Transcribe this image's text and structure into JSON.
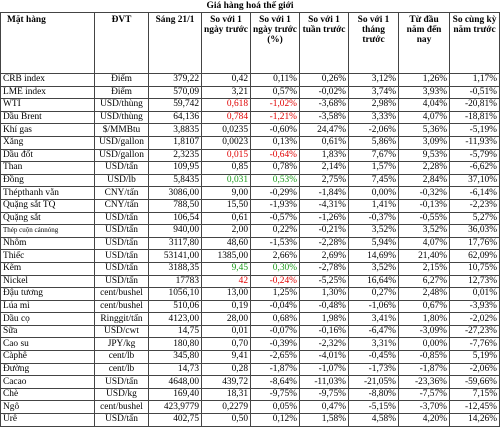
{
  "title": "Giá hàng hoá thế giới",
  "headers": [
    "Mặt hàng",
    "ĐVT",
    "Sáng 21/1",
    "So với 1 ngày trước",
    "So với 1 ngày trước (%)",
    "So với 1 tuần trước",
    "So với 1 tháng trước",
    "Từ đầu năm đến nay",
    "So cùng kỳ năm trước"
  ],
  "rows": [
    {
      "cells": [
        "CRB index",
        "Điểm",
        "379,22",
        "0,42",
        "0,11%",
        "0,26%",
        "3,12%",
        "1,26%",
        "1,17%"
      ]
    },
    {
      "cells": [
        "LME index",
        "Điểm",
        "570,09",
        "3,21",
        "0,57%",
        "-0,02%",
        "3,74%",
        "3,93%",
        "-0,51%"
      ]
    },
    {
      "cells": [
        "WTI",
        "USD/thùng",
        "59,742",
        "0,618",
        "-1,02%",
        "-3,68%",
        "2,98%",
        "4,04%",
        "-20,81%"
      ],
      "change_color": "#e00000"
    },
    {
      "cells": [
        "Dầu Brent",
        "USD/thùng",
        "64,136",
        "0,784",
        "-1,21%",
        "-3,58%",
        "3,33%",
        "4,07%",
        "-18,81%"
      ],
      "change_color": "#e00000"
    },
    {
      "cells": [
        "Khí gas",
        "$/MMBtu",
        "3,8835",
        "0,0235",
        "-0,60%",
        "24,47%",
        "-2,06%",
        "5,36%",
        "-5,19%"
      ]
    },
    {
      "cells": [
        "Xăng",
        "USD/gallon",
        "1,8107",
        "0,0023",
        "0,13%",
        "0,61%",
        "5,86%",
        "3,09%",
        "-11,93%"
      ]
    },
    {
      "cells": [
        "Dầu đốt",
        "USD/gallon",
        "2,3235",
        "0,015",
        "-0,64%",
        "1,83%",
        "7,67%",
        "9,53%",
        "-5,79%"
      ],
      "change_color": "#e00000"
    },
    {
      "cells": [
        "Than",
        "USD/tấn",
        "109,95",
        "0,85",
        "0,78%",
        "2,14%",
        "1,57%",
        "2,28%",
        "-6,62%"
      ]
    },
    {
      "cells": [
        "Đồng",
        "USD/lb",
        "5,8435",
        "0,031",
        "0,53%",
        "2,75%",
        "7,45%",
        "2,84%",
        "37,10%"
      ],
      "change_color": "#1a9a1a"
    },
    {
      "cells": [
        "Thépthanh vằn",
        "CNY/tấn",
        "3086,00",
        "9,00",
        "-0,29%",
        "-1,84%",
        "0,00%",
        "-0,32%",
        "-6,14%"
      ]
    },
    {
      "cells": [
        "Quặng sắt TQ",
        "CNY/tấn",
        "788,50",
        "15,50",
        "-1,93%",
        "-4,31%",
        "1,41%",
        "-0,13%",
        "-2,23%"
      ]
    },
    {
      "cells": [
        "Quặng sắt",
        "USD/tấn",
        "106,54",
        "0,61",
        "-0,57%",
        "-1,26%",
        "-0,37%",
        "-0,55%",
        "5,27%"
      ]
    },
    {
      "cells": [
        "Thép cuộn cánnóng",
        "USD/tấn",
        "940,00",
        "2,00",
        "0,22%",
        "-0,21%",
        "3,52%",
        "3,52%",
        "36,03%"
      ],
      "small_name": true
    },
    {
      "cells": [
        "Nhôm",
        "USD/tấn",
        "3117,80",
        "48,60",
        "-1,53%",
        "-2,28%",
        "5,94%",
        "4,07%",
        "17,76%"
      ]
    },
    {
      "cells": [
        "Thiếc",
        "USD/tấn",
        "53141,00",
        "1385,00",
        "2,66%",
        "2,69%",
        "14,69%",
        "21,40%",
        "62,09%"
      ]
    },
    {
      "cells": [
        "Kẽm",
        "USD/tấn",
        "3188,35",
        "9,45",
        "0,30%",
        "-2,78%",
        "3,52%",
        "2,15%",
        "10,75%"
      ],
      "change_color": "#1a9a1a"
    },
    {
      "cells": [
        "Nickel",
        "USD/tấn",
        "17783",
        "42",
        "-0,24%",
        "-5,25%",
        "16,64%",
        "6,27%",
        "12,73%"
      ],
      "change_color": "#e00000"
    },
    {
      "cells": [
        "Đậu tương",
        "cent/bushel",
        "1056,10",
        "13,00",
        "1,25%",
        "1,30%",
        "0,27%",
        "2,48%",
        "0,01%"
      ]
    },
    {
      "cells": [
        "Lúa mì",
        "cent/bushel",
        "510,06",
        "0,19",
        "-0,04%",
        "-0,48%",
        "-1,06%",
        "0,67%",
        "-3,93%"
      ]
    },
    {
      "cells": [
        "Dầu cọ",
        "Ringgit/tấn",
        "4123,00",
        "28,00",
        "0,68%",
        "1,98%",
        "3,41%",
        "1,80%",
        "-2,02%"
      ]
    },
    {
      "cells": [
        "Sữa",
        "USD/cwt",
        "14,75",
        "0,01",
        "-0,07%",
        "-0,16%",
        "-6,47%",
        "-3,09%",
        "-27,23%"
      ]
    },
    {
      "cells": [
        "Cao su",
        "JPY/kg",
        "180,80",
        "0,70",
        "-0,39%",
        "-2,32%",
        "3,31%",
        "0,00%",
        "-7,76%"
      ]
    },
    {
      "cells": [
        "Càphê",
        "cent/lb",
        "345,80",
        "9,41",
        "-2,65%",
        "-4,01%",
        "-0,45%",
        "-0,85%",
        "5,19%"
      ]
    },
    {
      "cells": [
        "Đường",
        "cent/lb",
        "14,73",
        "0,28",
        "-1,87%",
        "-1,07%",
        "-1,73%",
        "-1,87%",
        "-2,06%"
      ]
    },
    {
      "cells": [
        "Cacao",
        "USD/tấn",
        "4648,00",
        "439,72",
        "-8,64%",
        "-11,03%",
        "-21,05%",
        "-23,36%",
        "-59,66%"
      ]
    },
    {
      "cells": [
        "Chè",
        "USD/kg",
        "169,40",
        "18,31",
        "-9,75%",
        "-9,75%",
        "-8,80%",
        "-7,57%",
        "7,15%"
      ]
    },
    {
      "cells": [
        "Ngô",
        "cent/bushel",
        "423,9779",
        "0,2279",
        "0,05%",
        "0,47%",
        "-5,15%",
        "-3,70%",
        "-12,45%"
      ]
    },
    {
      "cells": [
        "Urê",
        "USD/tấn",
        "402,75",
        "0,50",
        "0,12%",
        "1,58%",
        "4,58%",
        "4,20%",
        "14,26%"
      ]
    }
  ]
}
